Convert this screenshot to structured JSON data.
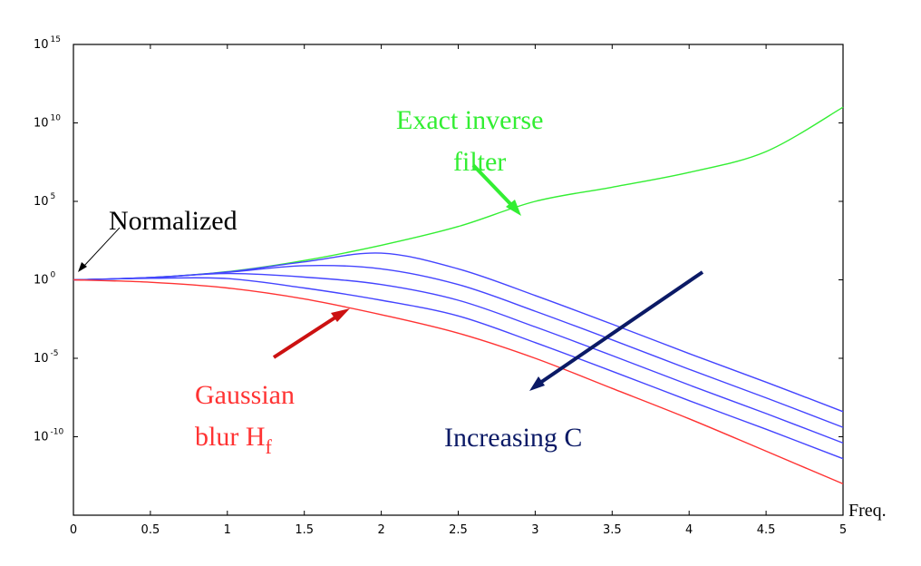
{
  "chart_data": {
    "type": "line",
    "title": "",
    "xlabel": "Freq.",
    "ylabel": "",
    "y_scale": "log",
    "xlim": [
      0,
      5
    ],
    "ylim": [
      1e-15,
      1000000000000000.0
    ],
    "x_ticks": [
      "0",
      "0.5",
      "1",
      "1.5",
      "2",
      "2.5",
      "3",
      "3.5",
      "4",
      "4.5",
      "5"
    ],
    "y_ticks": [
      {
        "base": "10",
        "exp": "15",
        "value": 1000000000000000.0
      },
      {
        "base": "10",
        "exp": "10",
        "value": 10000000000.0
      },
      {
        "base": "10",
        "exp": "5",
        "value": 100000.0
      },
      {
        "base": "10",
        "exp": "0",
        "value": 1
      },
      {
        "base": "10",
        "exp": "-5",
        "value": 1e-05
      },
      {
        "base": "10",
        "exp": "-10",
        "value": 1e-10
      }
    ],
    "grid": false,
    "colors": {
      "exact_inverse": "#33ee33",
      "gaussian": "#ff3333",
      "wiener": "#4444ff",
      "arrow_c": "#0b1a66",
      "arrow_norm": "#000000"
    },
    "series": [
      {
        "name": "",
        "color": "#33ee33",
        "x": [
          0,
          0.5,
          1,
          1.5,
          2,
          2.5,
          3,
          3.5,
          4,
          4.5,
          5
        ],
        "y": [
          1,
          1.4,
          3.3,
          17,
          160,
          2500.0,
          100000.0,
          800000.0,
          7000000.0,
          150000000.0,
          100000000000.0
        ]
      },
      {
        "name": "",
        "color": "#4444ff",
        "x": [
          0,
          0.5,
          1,
          1.5,
          2,
          2.5,
          3,
          3.5,
          4,
          4.5,
          5
        ],
        "y": [
          1,
          1.4,
          3.2,
          14,
          50,
          5,
          0.1,
          0.0015,
          2e-05,
          3e-07,
          4e-09
        ]
      },
      {
        "name": "",
        "color": "#4444ff",
        "x": [
          0,
          0.5,
          1,
          1.5,
          2,
          2.5,
          3,
          3.5,
          4,
          4.5,
          5
        ],
        "y": [
          1,
          1.4,
          3,
          8,
          5,
          0.5,
          0.01,
          0.00015,
          2e-06,
          3e-08,
          4e-10
        ]
      },
      {
        "name": "",
        "color": "#4444ff",
        "x": [
          0,
          0.5,
          1,
          1.5,
          2,
          2.5,
          3,
          3.5,
          4,
          4.5,
          5
        ],
        "y": [
          1,
          1.35,
          2.5,
          1.5,
          0.5,
          0.05,
          0.001,
          1.5e-05,
          2e-07,
          3e-09,
          4e-11
        ]
      },
      {
        "name": "",
        "color": "#4444ff",
        "x": [
          0,
          0.5,
          1,
          1.5,
          2,
          2.5,
          3,
          3.5,
          4,
          4.5,
          5
        ],
        "y": [
          1,
          1.25,
          1.2,
          0.3,
          0.05,
          0.005,
          0.0001,
          1.5e-06,
          2e-08,
          3e-10,
          4e-12
        ]
      },
      {
        "name": "",
        "color": "#ff3333",
        "x": [
          0,
          0.5,
          1,
          1.5,
          2,
          2.5,
          3,
          3.5,
          4,
          4.5,
          5
        ],
        "y": [
          1,
          0.7,
          0.3,
          0.06,
          0.006,
          0.0004,
          1e-05,
          1.2e-07,
          1.4e-09,
          1.2e-11,
          1e-13
        ]
      }
    ],
    "annotations": [
      {
        "id": "exact",
        "lines": [
          "Exact inverse",
          "filter"
        ],
        "color": "#33ee33"
      },
      {
        "id": "normalized",
        "lines": [
          "Normalized"
        ],
        "color": "#000000"
      },
      {
        "id": "gaussian",
        "lines": [
          "Gaussian",
          "blur H"
        ],
        "sub": "f",
        "color": "#ff3333"
      },
      {
        "id": "increasing",
        "lines": [
          "Increasing C"
        ],
        "color": "#0b1a66"
      }
    ]
  }
}
